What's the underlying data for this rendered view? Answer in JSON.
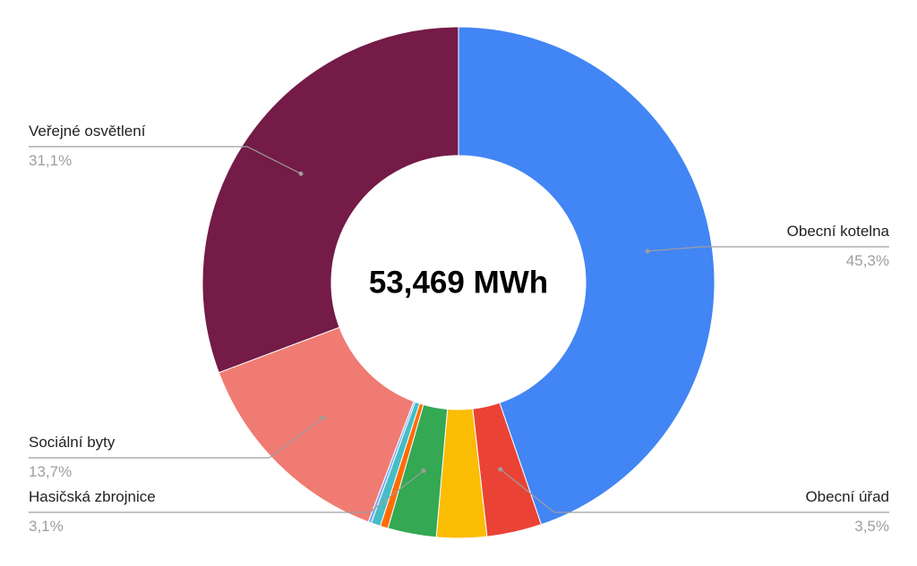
{
  "chart_data": {
    "type": "pie",
    "center_label": "53,469 MWh",
    "slices": [
      {
        "name": "Obecní kotelna",
        "value": 45.3,
        "label": "Obecní kotelna",
        "pct_label": "45,3%",
        "color": "#4285f4"
      },
      {
        "name": "Obecní úřad",
        "value": 3.5,
        "label": "Obecní úřad",
        "pct_label": "3,5%",
        "color": "#ea4335"
      },
      {
        "name": "",
        "value": 3.2,
        "label": "",
        "pct_label": "",
        "color": "#fbbc04"
      },
      {
        "name": "Hasičská zbrojnice",
        "value": 3.1,
        "label": "Hasičská zbrojnice",
        "pct_label": "3,1%",
        "color": "#34a853"
      },
      {
        "name": "",
        "value": 0.5,
        "label": "",
        "pct_label": "",
        "color": "#ff6d01"
      },
      {
        "name": "",
        "value": 0.6,
        "label": "",
        "pct_label": "",
        "color": "#46bdc6"
      },
      {
        "name": "",
        "value": 0.2,
        "label": "",
        "pct_label": "",
        "color": "#7baaf7"
      },
      {
        "name": "Sociální byty",
        "value": 13.7,
        "label": "Sociální byty",
        "pct_label": "13,7%",
        "color": "#f07b72"
      },
      {
        "name": "Veřejné osvětlení",
        "value": 31.1,
        "label": "Veřejné osvětlení",
        "pct_label": "31,1%",
        "color": "#741b47"
      }
    ]
  }
}
